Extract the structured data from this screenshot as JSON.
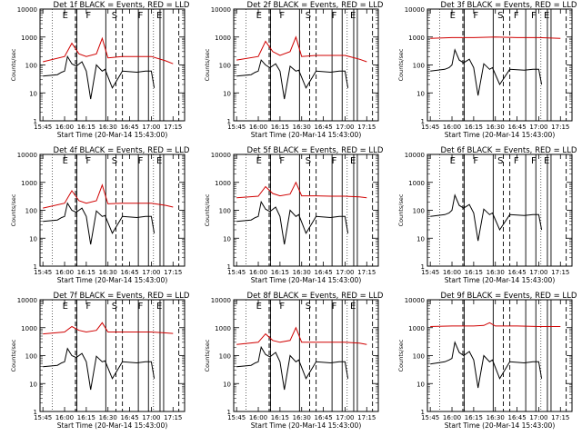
{
  "chart_data": [
    {
      "type": "line",
      "title": "Det 1f BLACK = Events, RED = LLD",
      "ylabel": "Counts/sec",
      "xlabel": "Start Time (20-Mar-14 15:43:00)",
      "xlim": [
        "15:43",
        "17:23"
      ],
      "ylim": [
        1,
        10000
      ],
      "yscale": "log",
      "xticks": [
        "15:45",
        "16:00",
        "16:15",
        "16:30",
        "16:45",
        "17:00",
        "17:15"
      ],
      "yticks": [
        "1",
        "10",
        "100",
        "1000",
        "10000"
      ],
      "markers": [
        "E",
        "F",
        "S",
        "F",
        "E"
      ],
      "series": [
        {
          "name": "Events",
          "color": "#000000",
          "x": [
            "15:45",
            "15:55",
            "15:58",
            "16:00",
            "16:02",
            "16:05",
            "16:08",
            "16:12",
            "16:15",
            "16:18",
            "16:22",
            "16:26",
            "16:28",
            "16:33",
            "16:40",
            "16:50",
            "16:56",
            "17:00",
            "17:02"
          ],
          "y": [
            40,
            45,
            55,
            60,
            200,
            110,
            90,
            130,
            60,
            6,
            100,
            60,
            70,
            15,
            60,
            55,
            60,
            60,
            15
          ]
        },
        {
          "name": "LLD",
          "color": "#d00000",
          "x": [
            "15:45",
            "16:00",
            "16:05",
            "16:10",
            "16:15",
            "16:22",
            "16:26",
            "16:30",
            "16:40",
            "16:50",
            "17:00",
            "17:10",
            "17:15"
          ],
          "y": [
            130,
            200,
            600,
            250,
            200,
            250,
            900,
            180,
            200,
            200,
            200,
            140,
            110
          ]
        }
      ]
    },
    {
      "type": "line",
      "title": "Det 2f BLACK = Events, RED = LLD",
      "ylabel": "Counts/sec",
      "xlabel": "Start Time (20-Mar-14 15:43:00)",
      "xlim": [
        "15:43",
        "17:23"
      ],
      "ylim": [
        1,
        10000
      ],
      "yscale": "log",
      "xticks": [
        "15:45",
        "16:00",
        "16:15",
        "16:30",
        "16:45",
        "17:00",
        "17:15"
      ],
      "yticks": [
        "1",
        "10",
        "100",
        "1000",
        "10000"
      ],
      "markers": [
        "E",
        "F",
        "S",
        "F",
        "E"
      ],
      "series": [
        {
          "name": "Events",
          "color": "#000000",
          "x": [
            "15:45",
            "15:55",
            "15:58",
            "16:00",
            "16:02",
            "16:05",
            "16:08",
            "16:12",
            "16:15",
            "16:18",
            "16:22",
            "16:26",
            "16:28",
            "16:33",
            "16:40",
            "16:50",
            "16:56",
            "17:00",
            "17:02"
          ],
          "y": [
            40,
            45,
            55,
            60,
            150,
            100,
            80,
            110,
            60,
            6,
            90,
            60,
            65,
            15,
            60,
            55,
            60,
            60,
            15
          ]
        },
        {
          "name": "LLD",
          "color": "#d00000",
          "x": [
            "15:45",
            "16:00",
            "16:05",
            "16:10",
            "16:15",
            "16:22",
            "16:26",
            "16:30",
            "16:40",
            "16:50",
            "17:00",
            "17:10",
            "17:15"
          ],
          "y": [
            150,
            200,
            700,
            300,
            220,
            300,
            1000,
            200,
            220,
            220,
            220,
            160,
            130
          ]
        }
      ]
    },
    {
      "type": "line",
      "title": "Det 3f BLACK = Events, RED = LLD",
      "ylabel": "Counts/sec",
      "xlabel": "Start Time (20-Mar-14 15:43:00)",
      "xlim": [
        "15:43",
        "17:23"
      ],
      "ylim": [
        1,
        10000
      ],
      "yscale": "log",
      "xticks": [
        "15:45",
        "16:00",
        "16:15",
        "16:30",
        "16:45",
        "17:00",
        "17:15"
      ],
      "yticks": [
        "1",
        "10",
        "100",
        "1000",
        "10000"
      ],
      "markers": [
        "E",
        "F",
        "S",
        "F",
        "F",
        "E"
      ],
      "series": [
        {
          "name": "Events",
          "color": "#000000",
          "x": [
            "15:45",
            "15:55",
            "15:58",
            "16:00",
            "16:02",
            "16:05",
            "16:08",
            "16:12",
            "16:15",
            "16:18",
            "16:22",
            "16:26",
            "16:28",
            "16:33",
            "16:40",
            "16:50",
            "16:56",
            "17:00",
            "17:02"
          ],
          "y": [
            60,
            70,
            80,
            100,
            350,
            150,
            120,
            160,
            80,
            8,
            110,
            70,
            80,
            20,
            70,
            65,
            70,
            70,
            20
          ]
        },
        {
          "name": "LLD",
          "color": "#d00000",
          "x": [
            "15:45",
            "16:00",
            "16:15",
            "16:30",
            "16:45",
            "17:00",
            "17:15"
          ],
          "y": [
            900,
            950,
            950,
            1000,
            950,
            950,
            900
          ]
        }
      ]
    },
    {
      "type": "line",
      "title": "Det 4f BLACK = Events, RED = LLD",
      "ylabel": "Counts/sec",
      "xlabel": "Start Time (20-Mar-14 15:43:00)",
      "xlim": [
        "15:43",
        "17:23"
      ],
      "ylim": [
        1,
        10000
      ],
      "yscale": "log",
      "xticks": [
        "15:45",
        "16:00",
        "16:15",
        "16:30",
        "16:45",
        "17:00",
        "17:15"
      ],
      "yticks": [
        "1",
        "10",
        "100",
        "1000",
        "10000"
      ],
      "markers": [
        "E",
        "F",
        "S",
        "F",
        "E"
      ],
      "series": [
        {
          "name": "Events",
          "color": "#000000",
          "x": [
            "15:45",
            "15:55",
            "15:58",
            "16:00",
            "16:02",
            "16:05",
            "16:08",
            "16:12",
            "16:15",
            "16:18",
            "16:22",
            "16:26",
            "16:28",
            "16:33",
            "16:40",
            "16:50",
            "16:56",
            "17:00",
            "17:02"
          ],
          "y": [
            40,
            45,
            55,
            60,
            180,
            100,
            85,
            120,
            60,
            6,
            95,
            60,
            65,
            15,
            60,
            55,
            60,
            60,
            15
          ]
        },
        {
          "name": "LLD",
          "color": "#d00000",
          "x": [
            "15:45",
            "16:00",
            "16:05",
            "16:10",
            "16:15",
            "16:22",
            "16:26",
            "16:30",
            "16:40",
            "16:50",
            "17:00",
            "17:10",
            "17:15"
          ],
          "y": [
            120,
            180,
            500,
            220,
            180,
            220,
            800,
            170,
            180,
            180,
            180,
            150,
            130
          ]
        }
      ]
    },
    {
      "type": "line",
      "title": "Det 5f BLACK = Events, RED = LLD",
      "ylabel": "Counts/sec",
      "xlabel": "Start Time (20-Mar-14 15:43:00)",
      "xlim": [
        "15:43",
        "17:23"
      ],
      "ylim": [
        1,
        10000
      ],
      "yscale": "log",
      "xticks": [
        "15:45",
        "16:00",
        "16:15",
        "16:30",
        "16:45",
        "17:00",
        "17:15"
      ],
      "yticks": [
        "1",
        "10",
        "100",
        "1000",
        "10000"
      ],
      "markers": [
        "E",
        "F",
        "S",
        "F",
        "E"
      ],
      "series": [
        {
          "name": "Events",
          "color": "#000000",
          "x": [
            "15:45",
            "15:55",
            "15:58",
            "16:00",
            "16:02",
            "16:05",
            "16:08",
            "16:12",
            "16:15",
            "16:18",
            "16:22",
            "16:26",
            "16:28",
            "16:33",
            "16:40",
            "16:50",
            "16:56",
            "17:00",
            "17:02"
          ],
          "y": [
            40,
            45,
            55,
            60,
            200,
            110,
            90,
            130,
            60,
            6,
            100,
            60,
            70,
            15,
            60,
            55,
            60,
            60,
            15
          ]
        },
        {
          "name": "LLD",
          "color": "#d00000",
          "x": [
            "15:45",
            "16:00",
            "16:05",
            "16:10",
            "16:15",
            "16:22",
            "16:26",
            "16:30",
            "16:40",
            "16:50",
            "17:00",
            "17:10",
            "17:15"
          ],
          "y": [
            280,
            320,
            700,
            400,
            330,
            380,
            1000,
            330,
            330,
            320,
            320,
            300,
            280
          ]
        }
      ]
    },
    {
      "type": "line",
      "title": "Det 6f BLACK = Events, RED = LLD",
      "ylabel": "Counts/sec",
      "xlabel": "Start Time (20-Mar-14 15:43:00)",
      "xlim": [
        "15:43",
        "17:23"
      ],
      "ylim": [
        1,
        10000
      ],
      "yscale": "log",
      "xticks": [
        "15:45",
        "16:00",
        "16:15",
        "16:30",
        "16:45",
        "17:00",
        "17:15"
      ],
      "yticks": [
        "1",
        "10",
        "100",
        "1000",
        "10000"
      ],
      "markers": [
        "E",
        "F",
        "S",
        "F",
        "F",
        "E"
      ],
      "series": [
        {
          "name": "Events",
          "color": "#000000",
          "x": [
            "15:45",
            "15:55",
            "15:58",
            "16:00",
            "16:02",
            "16:05",
            "16:08",
            "16:12",
            "16:15",
            "16:18",
            "16:22",
            "16:26",
            "16:28",
            "16:33",
            "16:40",
            "16:50",
            "16:56",
            "17:00",
            "17:02"
          ],
          "y": [
            60,
            70,
            80,
            100,
            350,
            150,
            120,
            160,
            80,
            8,
            110,
            70,
            80,
            20,
            70,
            65,
            70,
            70,
            20
          ]
        },
        {
          "name": "LLD",
          "color": "#d00000",
          "x": [],
          "y": []
        }
      ]
    },
    {
      "type": "line",
      "title": "Det 7f BLACK = Events, RED = LLD",
      "ylabel": "Counts/sec",
      "xlabel": "Start Time (20-Mar-14 15:43:00)",
      "xlim": [
        "15:43",
        "17:23"
      ],
      "ylim": [
        1,
        10000
      ],
      "yscale": "log",
      "xticks": [
        "15:45",
        "16:00",
        "16:15",
        "16:30",
        "16:45",
        "17:00",
        "17:15"
      ],
      "yticks": [
        "1",
        "10",
        "100",
        "1000",
        "10000"
      ],
      "markers": [
        "E",
        "F",
        "S",
        "F",
        "E"
      ],
      "series": [
        {
          "name": "Events",
          "color": "#000000",
          "x": [
            "15:45",
            "15:55",
            "15:58",
            "16:00",
            "16:02",
            "16:05",
            "16:08",
            "16:12",
            "16:15",
            "16:18",
            "16:22",
            "16:26",
            "16:28",
            "16:33",
            "16:40",
            "16:50",
            "16:56",
            "17:00",
            "17:02"
          ],
          "y": [
            40,
            45,
            55,
            60,
            180,
            100,
            85,
            120,
            60,
            6,
            95,
            60,
            65,
            15,
            60,
            55,
            60,
            60,
            15
          ]
        },
        {
          "name": "LLD",
          "color": "#d00000",
          "x": [
            "15:45",
            "16:00",
            "16:05",
            "16:10",
            "16:15",
            "16:22",
            "16:26",
            "16:30",
            "16:40",
            "16:50",
            "17:00",
            "17:10",
            "17:15"
          ],
          "y": [
            600,
            700,
            1100,
            800,
            700,
            800,
            1500,
            700,
            700,
            700,
            700,
            650,
            620
          ]
        }
      ]
    },
    {
      "type": "line",
      "title": "Det 8f BLACK = Events, RED = LLD",
      "ylabel": "Counts/sec",
      "xlabel": "Start Time (20-Mar-14 15:43:00)",
      "xlim": [
        "15:43",
        "17:23"
      ],
      "ylim": [
        1,
        10000
      ],
      "yscale": "log",
      "xticks": [
        "15:45",
        "16:00",
        "16:15",
        "16:30",
        "16:45",
        "17:00",
        "17:15"
      ],
      "yticks": [
        "1",
        "10",
        "100",
        "1000",
        "10000"
      ],
      "markers": [
        "E",
        "F",
        "S",
        "F",
        "E"
      ],
      "series": [
        {
          "name": "Events",
          "color": "#000000",
          "x": [
            "15:45",
            "15:55",
            "15:58",
            "16:00",
            "16:02",
            "16:05",
            "16:08",
            "16:12",
            "16:15",
            "16:18",
            "16:22",
            "16:26",
            "16:28",
            "16:33",
            "16:40",
            "16:50",
            "16:56",
            "17:00",
            "17:02"
          ],
          "y": [
            40,
            45,
            55,
            60,
            200,
            110,
            90,
            130,
            60,
            6,
            100,
            60,
            70,
            15,
            60,
            55,
            60,
            60,
            15
          ]
        },
        {
          "name": "LLD",
          "color": "#d00000",
          "x": [
            "15:45",
            "16:00",
            "16:05",
            "16:10",
            "16:15",
            "16:22",
            "16:26",
            "16:30",
            "16:40",
            "16:50",
            "17:00",
            "17:10",
            "17:15"
          ],
          "y": [
            250,
            300,
            600,
            350,
            300,
            350,
            1000,
            300,
            300,
            300,
            300,
            280,
            250
          ]
        }
      ]
    },
    {
      "type": "line",
      "title": "Det 9f BLACK = Events, RED = LLD",
      "ylabel": "Counts/sec",
      "xlabel": "Start Time (20-Mar-14 15:43:00)",
      "xlim": [
        "15:43",
        "17:23"
      ],
      "ylim": [
        1,
        10000
      ],
      "yscale": "log",
      "xticks": [
        "15:45",
        "16:00",
        "16:15",
        "16:30",
        "16:45",
        "17:00",
        "17:15"
      ],
      "yticks": [
        "1",
        "10",
        "100",
        "1000",
        "10000"
      ],
      "markers": [],
      "series": [
        {
          "name": "Events",
          "color": "#000000",
          "x": [
            "15:45",
            "15:55",
            "15:58",
            "16:00",
            "16:02",
            "16:05",
            "16:08",
            "16:12",
            "16:15",
            "16:18",
            "16:22",
            "16:26",
            "16:28",
            "16:33",
            "16:40",
            "16:50",
            "16:56",
            "17:00",
            "17:02"
          ],
          "y": [
            50,
            60,
            70,
            80,
            300,
            130,
            100,
            140,
            70,
            7,
            100,
            60,
            70,
            15,
            60,
            55,
            60,
            60,
            15
          ]
        },
        {
          "name": "LLD",
          "color": "#d00000",
          "x": [
            "15:45",
            "16:00",
            "16:15",
            "16:22",
            "16:26",
            "16:30",
            "16:45",
            "17:00",
            "17:15"
          ],
          "y": [
            1100,
            1150,
            1150,
            1200,
            1500,
            1150,
            1150,
            1100,
            1100
          ]
        }
      ]
    }
  ]
}
